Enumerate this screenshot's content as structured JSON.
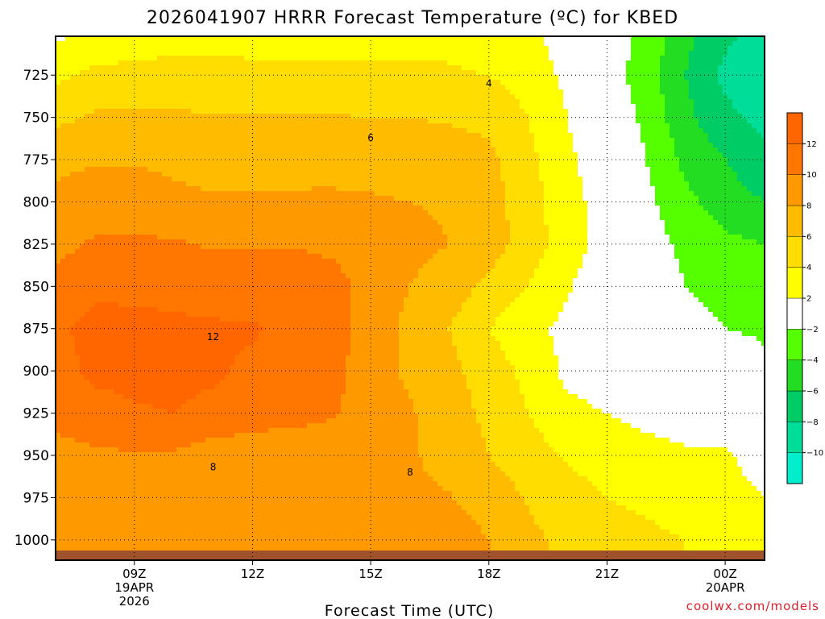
{
  "chart_data": {
    "type": "contour",
    "title": "2026041907 HRRR Forecast Temperature (ºC) for KBED",
    "xlabel": "Forecast Time (UTC)",
    "credit": "coolwx.com/models",
    "x_ticks": [
      {
        "hour": 9,
        "label": "09Z",
        "sub": [
          "19APR",
          "2026"
        ]
      },
      {
        "hour": 12,
        "label": "12Z",
        "sub": []
      },
      {
        "hour": 15,
        "label": "15Z",
        "sub": []
      },
      {
        "hour": 18,
        "label": "18Z",
        "sub": []
      },
      {
        "hour": 21,
        "label": "21Z",
        "sub": []
      },
      {
        "hour": 24,
        "label": "00Z",
        "sub": [
          "20APR"
        ]
      }
    ],
    "xlim": [
      7.0,
      25.0
    ],
    "ylim_pressure_hPa": [
      1012,
      702
    ],
    "y_ticks": [
      725,
      750,
      775,
      800,
      825,
      850,
      875,
      900,
      925,
      950,
      975,
      1000
    ],
    "colorbar": {
      "bounds": [
        -12,
        -10,
        -8,
        -6,
        -4,
        -2,
        2,
        4,
        6,
        8,
        10,
        12,
        14
      ],
      "tick_labels": [
        "12",
        "10",
        "8",
        "6",
        "4",
        "2",
        "−2",
        "−4",
        "−6",
        "−8",
        "−10"
      ],
      "colors": [
        "#00eecc",
        "#00dd99",
        "#00cc66",
        "#22dd22",
        "#55ff00",
        "#ffffff",
        "#ffff00",
        "#ffdd00",
        "#ffbb00",
        "#ff9900",
        "#ff7700",
        "#ff6600"
      ]
    },
    "contour_labels": [
      {
        "text": "4",
        "hour": 18.0,
        "p": 730
      },
      {
        "text": "6",
        "hour": 15.0,
        "p": 762
      },
      {
        "text": "12",
        "hour": 11.0,
        "p": 880
      },
      {
        "text": "8",
        "hour": 11.0,
        "p": 957
      },
      {
        "text": "8",
        "hour": 16.0,
        "p": 960
      }
    ],
    "data": {
      "hours": [
        7.0,
        8.0,
        9.0,
        10.0,
        11.0,
        12.0,
        13.0,
        14.0,
        15.0,
        16.0,
        17.0,
        18.0,
        19.0,
        20.0,
        21.0,
        22.0,
        23.0,
        24.0,
        25.0
      ],
      "levels_hPa": [
        700,
        725,
        750,
        775,
        800,
        825,
        850,
        875,
        900,
        925,
        950,
        975,
        1000
      ],
      "temperature_C": [
        [
          1.5,
          2.5,
          3.0,
          3.5,
          3.5,
          3.5,
          3.5,
          3.5,
          3.5,
          3.5,
          3.5,
          3.0,
          2.5,
          1.0,
          -1.0,
          -2.5,
          -5.5,
          -7.5,
          -9.0
        ],
        [
          3.5,
          4.5,
          4.5,
          4.5,
          4.5,
          4.3,
          4.3,
          4.3,
          4.3,
          4.3,
          4.2,
          4.0,
          3.2,
          1.5,
          -1.0,
          -3.0,
          -6.0,
          -8.5,
          -9.5
        ],
        [
          5.5,
          6.3,
          6.3,
          6.3,
          6.2,
          6.1,
          6.1,
          6.1,
          6.0,
          6.0,
          5.8,
          5.5,
          4.0,
          2.0,
          -0.5,
          -2.5,
          -5.5,
          -7.5,
          -8.5
        ],
        [
          7.5,
          7.8,
          7.8,
          7.5,
          7.3,
          7.2,
          7.3,
          7.4,
          7.3,
          7.2,
          7.0,
          6.5,
          4.5,
          2.5,
          0.5,
          -2.0,
          -4.5,
          -6.0,
          -7.5
        ],
        [
          8.5,
          9.2,
          9.2,
          8.5,
          8.2,
          8.2,
          8.3,
          8.3,
          8.2,
          8.0,
          7.8,
          7.0,
          4.8,
          2.8,
          1.0,
          -1.5,
          -3.5,
          -5.0,
          -6.0
        ],
        [
          9.5,
          10.2,
          10.3,
          10.2,
          9.8,
          9.9,
          9.9,
          9.6,
          9.0,
          8.5,
          8.0,
          7.0,
          5.0,
          3.0,
          1.0,
          -1.0,
          -2.5,
          -3.5,
          -4.0
        ],
        [
          10.5,
          11.5,
          11.4,
          11.2,
          11.0,
          11.0,
          11.0,
          10.8,
          9.2,
          8.0,
          7.0,
          5.5,
          4.0,
          2.2,
          0.5,
          -0.8,
          -2.0,
          -2.5,
          -2.8
        ],
        [
          11.5,
          12.8,
          12.7,
          12.5,
          12.3,
          12.2,
          11.6,
          11.0,
          9.0,
          7.5,
          6.0,
          4.0,
          2.5,
          1.5,
          0.3,
          -0.5,
          -1.5,
          -2.0,
          -2.3
        ],
        [
          11.0,
          12.6,
          12.6,
          12.5,
          12.3,
          11.6,
          11.0,
          10.6,
          9.0,
          7.6,
          6.5,
          5.0,
          3.5,
          1.5,
          1.0,
          0.5,
          0.0,
          -0.5,
          -1.5
        ],
        [
          10.5,
          11.0,
          11.8,
          12.0,
          11.5,
          11.0,
          10.8,
          10.2,
          9.2,
          8.2,
          7.0,
          5.5,
          4.0,
          2.5,
          2.0,
          1.5,
          1.0,
          0.5,
          0.0
        ],
        [
          9.5,
          9.7,
          9.8,
          9.8,
          9.0,
          8.8,
          8.5,
          8.8,
          8.4,
          8.2,
          7.4,
          6.0,
          4.8,
          3.8,
          3.0,
          2.6,
          2.3,
          2.3,
          1.0
        ],
        [
          8.5,
          8.7,
          8.6,
          8.8,
          8.5,
          8.3,
          8.3,
          8.3,
          8.1,
          8.3,
          8.1,
          7.2,
          5.8,
          4.8,
          4.0,
          3.5,
          3.0,
          2.8,
          2.0
        ],
        [
          8.0,
          8.2,
          8.3,
          8.3,
          8.2,
          8.0,
          8.2,
          8.4,
          8.6,
          8.8,
          9.0,
          8.0,
          6.5,
          5.5,
          5.0,
          4.5,
          4.0,
          3.8,
          3.5
        ]
      ]
    }
  }
}
